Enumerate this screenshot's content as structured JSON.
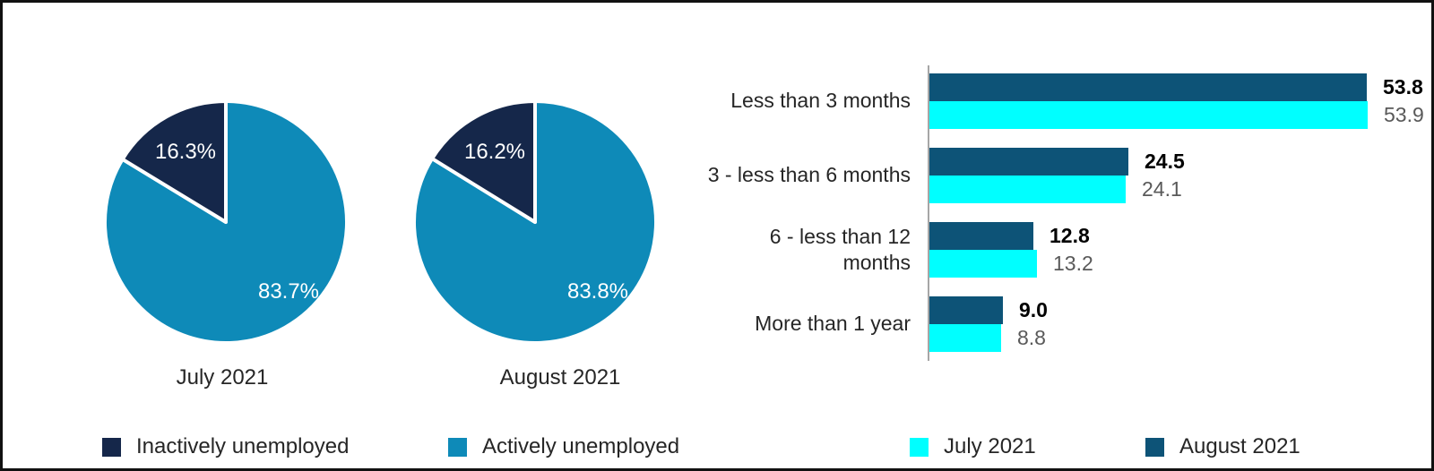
{
  "colors": {
    "inactively_navy": "#15274a",
    "actively_teal": "#0e8ab8",
    "august_blue": "#0d5377",
    "july_cyan": "#00ffff",
    "axis_gray": "#a6a6a6",
    "value_gray": "#595959",
    "text_dark": "#262626"
  },
  "chart_data": [
    {
      "type": "pie",
      "title": "July 2021",
      "labels": [
        "Actively unemployed",
        "Inactively unemployed"
      ],
      "values": [
        83.7,
        16.3
      ],
      "slice_colors": [
        "#0e8ab8",
        "#15274a"
      ],
      "value_labels": [
        "83.7%",
        "16.3%"
      ]
    },
    {
      "type": "pie",
      "title": "August 2021",
      "labels": [
        "Actively unemployed",
        "Inactively unemployed"
      ],
      "values": [
        83.8,
        16.2
      ],
      "slice_colors": [
        "#0e8ab8",
        "#15274a"
      ],
      "value_labels": [
        "83.8%",
        "16.2%"
      ]
    },
    {
      "type": "bar",
      "orientation": "horizontal",
      "categories": [
        "Less than 3 months",
        "3 - less than 6 months",
        "6 - less than 12\nmonths",
        "More than 1 year"
      ],
      "series": [
        {
          "name": "August 2021",
          "color": "#0d5377",
          "values": [
            53.8,
            24.5,
            12.8,
            9.0
          ],
          "value_labels": [
            "53.8",
            "24.5",
            "12.8",
            "9.0"
          ]
        },
        {
          "name": "July 2021",
          "color": "#00ffff",
          "values": [
            53.9,
            24.1,
            13.2,
            8.8
          ],
          "value_labels": [
            "53.9",
            "24.1",
            "13.2",
            "8.8"
          ]
        }
      ],
      "xlim": [
        0,
        60
      ],
      "grid": false,
      "legend_position": "bottom"
    }
  ],
  "pie_legend": [
    {
      "label": "Inactively unemployed",
      "color": "#15274a"
    },
    {
      "label": "Actively unemployed",
      "color": "#0e8ab8"
    }
  ],
  "bar_legend": [
    {
      "label": "July 2021",
      "color": "#00ffff"
    },
    {
      "label": "August 2021",
      "color": "#0d5377"
    }
  ]
}
